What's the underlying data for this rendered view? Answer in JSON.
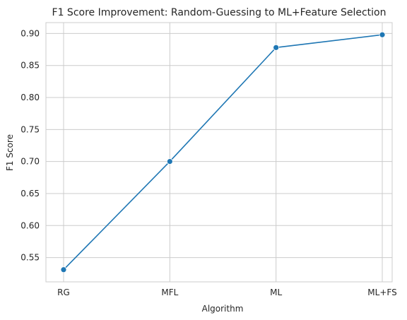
{
  "chart_data": {
    "type": "line",
    "title": "F1 Score Improvement: Random-Guessing to ML+Feature Selection",
    "xlabel": "Algorithm",
    "ylabel": "F1 Score",
    "categories": [
      "RG",
      "MFL",
      "ML",
      "ML+FS"
    ],
    "values": [
      0.531,
      0.7,
      0.878,
      0.898
    ],
    "ylim": [
      0.512,
      0.917
    ],
    "yticks": [
      0.55,
      0.6,
      0.65,
      0.7,
      0.75,
      0.8,
      0.85,
      0.9
    ],
    "ytick_labels": [
      "0.55",
      "0.60",
      "0.65",
      "0.70",
      "0.75",
      "0.80",
      "0.85",
      "0.90"
    ],
    "grid": true,
    "marker": "circle",
    "line_color": "#1f77b4"
  }
}
